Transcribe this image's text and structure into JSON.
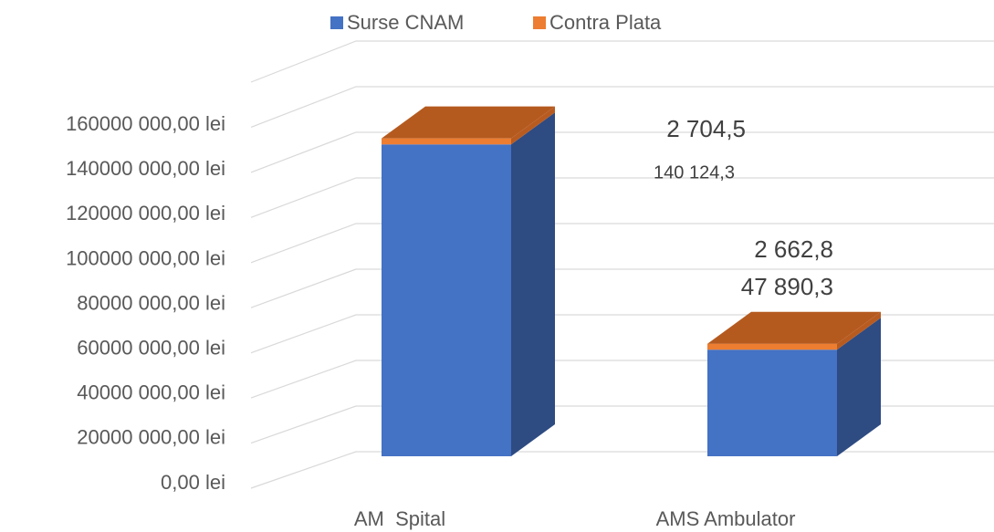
{
  "chart_data": {
    "type": "bar3d_stacked",
    "categories": [
      "AM  Spital",
      "AMS Ambulator"
    ],
    "series": [
      {
        "name": "Surse CNAM",
        "color": "#4472c4",
        "values": [
          140124300,
          47890300
        ],
        "value_labels": [
          "140 124,3",
          "47 890,3"
        ]
      },
      {
        "name": "Contra Plata",
        "color": "#ed7d31",
        "values": [
          2704500,
          2662800
        ],
        "value_labels": [
          "2 704,5",
          "2 662,8"
        ]
      }
    ],
    "ylim": [
      0,
      180000000
    ],
    "yticks": [
      {
        "value": 0,
        "label": "0,00 lei"
      },
      {
        "value": 20000000,
        "label": "20000 000,00 lei"
      },
      {
        "value": 40000000,
        "label": "40000 000,00 lei"
      },
      {
        "value": 60000000,
        "label": "60000 000,00 lei"
      },
      {
        "value": 80000000,
        "label": "80000 000,00 lei"
      },
      {
        "value": 100000000,
        "label": "100000 000,00 lei"
      },
      {
        "value": 120000000,
        "label": "120000 000,00 lei"
      },
      {
        "value": 140000000,
        "label": "140000 000,00 lei"
      },
      {
        "value": 160000000,
        "label": "160000 000,00 lei"
      }
    ],
    "grid": true,
    "legend": "top"
  }
}
